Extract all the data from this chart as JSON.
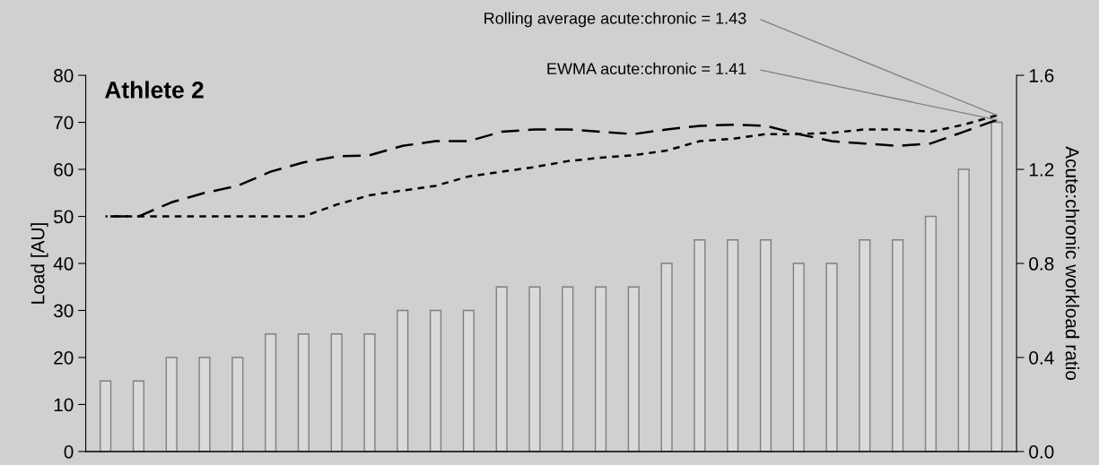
{
  "chart_data": {
    "type": "bar",
    "title": "Athlete 2",
    "ylabel": "Load [AU]",
    "y2label": "Acute:chronic workload ratio",
    "categories": [
      null,
      null,
      null,
      null,
      null,
      null,
      null,
      null,
      null,
      null,
      null,
      null,
      null,
      null,
      null,
      null,
      null,
      null,
      null,
      null,
      null,
      null,
      null,
      null,
      null,
      null,
      null,
      null
    ],
    "series": [
      {
        "color": "#d9d9d9",
        "values": [
          15,
          15,
          20,
          20,
          20,
          25,
          25,
          25,
          25,
          30,
          30,
          30,
          35,
          35,
          35,
          35,
          35,
          40,
          45,
          45,
          45,
          40,
          40,
          45,
          45,
          50,
          60,
          70
        ]
      },
      {
        "type": "line",
        "axis": "y2",
        "color": "#000000",
        "line_style": "dotted",
        "values": [
          1.0,
          1.0,
          1.0,
          1.0,
          1.0,
          1.0,
          1.0,
          1.05,
          1.09,
          1.11,
          1.13,
          1.17,
          1.19,
          1.21,
          1.235,
          1.25,
          1.26,
          1.28,
          1.32,
          1.33,
          1.35,
          1.35,
          1.355,
          1.37,
          1.37,
          1.36,
          1.39,
          1.43
        ]
      },
      {
        "type": "line",
        "axis": "y2",
        "color": "#000000",
        "line_style": "dashed",
        "values": [
          1.0,
          1.0,
          1.06,
          1.1,
          1.13,
          1.19,
          1.23,
          1.255,
          1.26,
          1.3,
          1.32,
          1.32,
          1.36,
          1.37,
          1.37,
          1.36,
          1.35,
          1.37,
          1.385,
          1.39,
          1.385,
          1.35,
          1.32,
          1.31,
          1.3,
          1.31,
          1.36,
          1.41
        ]
      }
    ],
    "ylim": [
      0,
      80
    ],
    "yticks": [
      0,
      10,
      20,
      30,
      40,
      50,
      60,
      70,
      80
    ],
    "y2lim": [
      0,
      1.6
    ],
    "y2ticks": [
      {
        "value": 0,
        "label": "0.0"
      },
      0.4,
      0.8,
      1.2,
      1.6
    ],
    "annotations": [
      "Rolling average acute:chronic = 1.43",
      "EWMA acute:chronic = 1.41"
    ],
    "grid": false
  }
}
